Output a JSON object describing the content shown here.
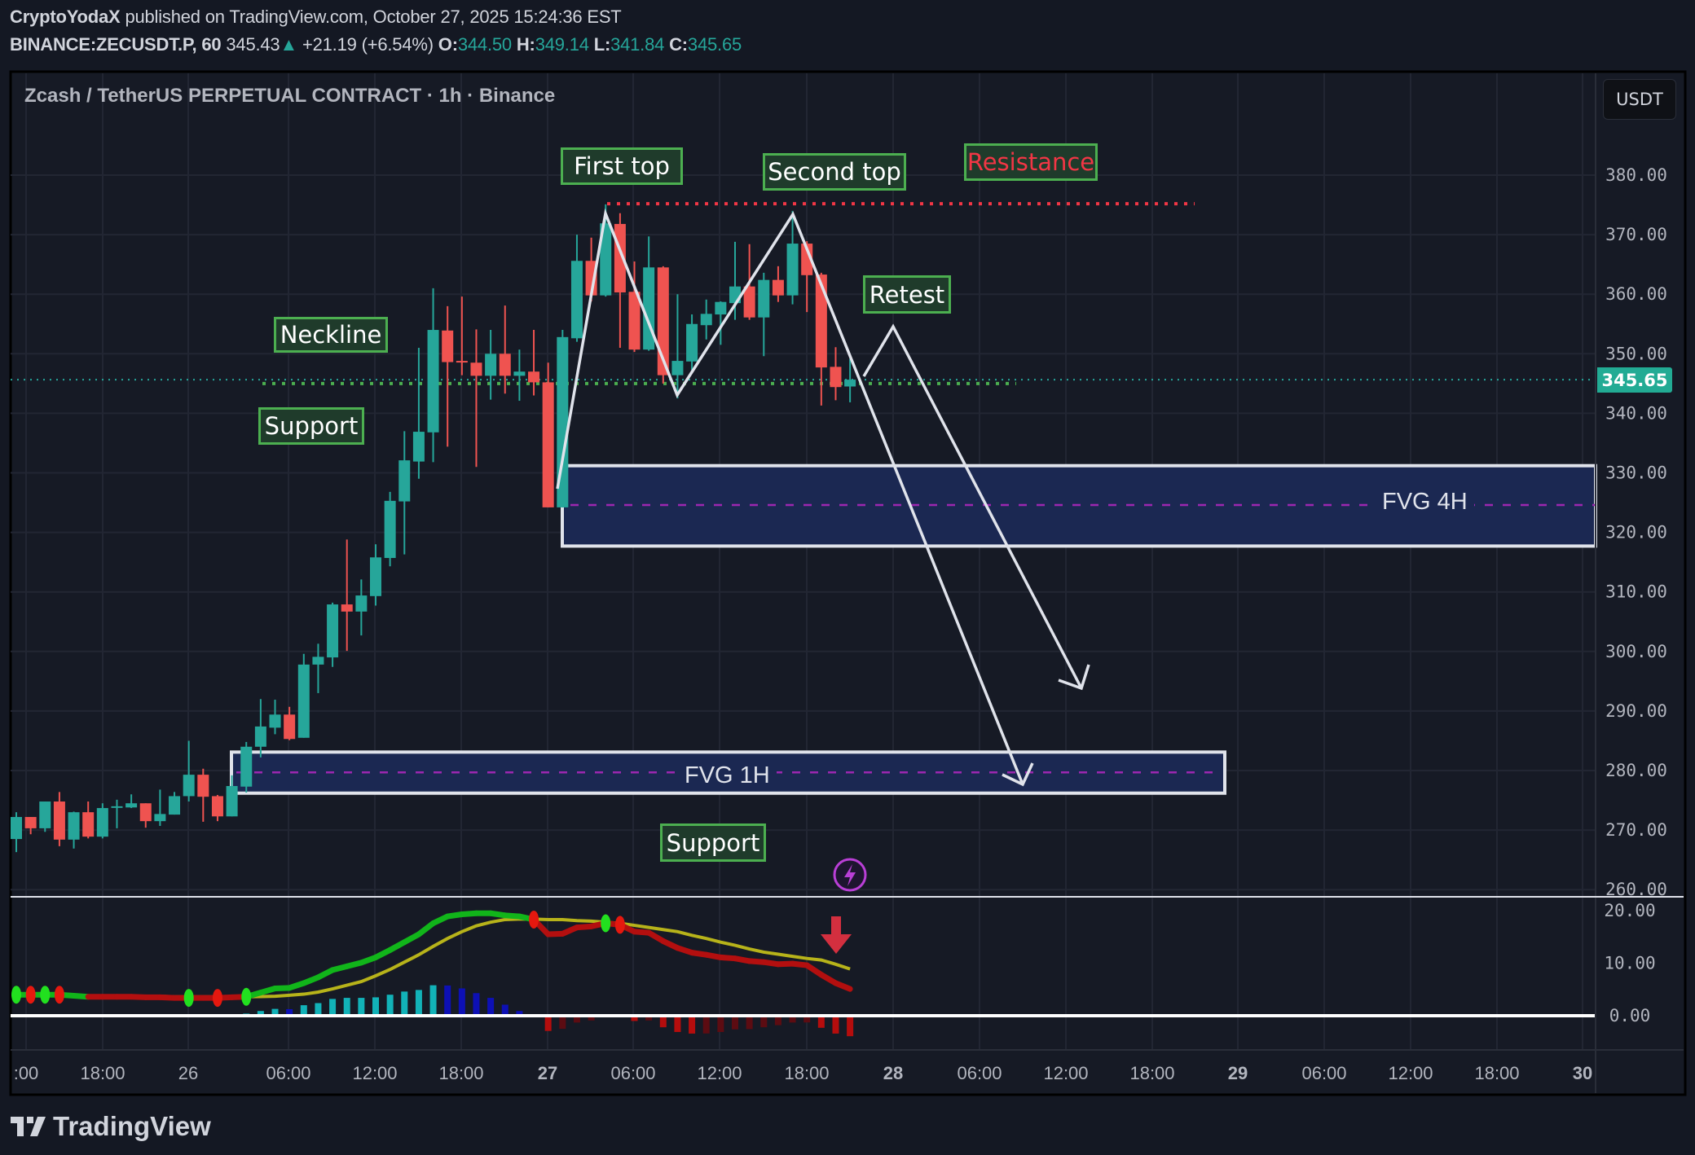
{
  "header": {
    "author": "CryptoYodaX",
    "published": "published on TradingView.com, October 27, 2025 15:24:36 EST",
    "symbol": "BINANCE:ZECUSDT.P, 60",
    "last": "345.43",
    "change": "+21.19 (+6.54%)",
    "o_label": "O:",
    "o": "344.50",
    "h_label": "H:",
    "h": "349.14",
    "l_label": "L:",
    "l": "341.84",
    "c_label": "C:",
    "c": "345.65"
  },
  "chart_title": "Zcash / TetherUS PERPETUAL CONTRACT · 1h · Binance",
  "currency_button": "USDT",
  "current_price_tag": "345.65",
  "annotations": {
    "first_top": "First top",
    "second_top": "Second top",
    "resistance": "Resistance",
    "retest": "Retest",
    "neckline": "Neckline",
    "support_upper": "Support",
    "support_lower": "Support",
    "fvg_4h": "FVG 4H",
    "fvg_1h": "FVG 1H"
  },
  "brand": "TradingView",
  "colors": {
    "up": "#26a69a",
    "down": "#ef5350",
    "background": "#161a25",
    "grid": "#222633",
    "macd_up": "#11b51a",
    "macd_down": "#b30f0f",
    "signal": "#b7b31a",
    "hist_up_rising": "#12b2b8",
    "hist_up_falling": "#0d10b5",
    "hist_down_falling": "#b50d0d",
    "hist_down_rising": "#5c0c12",
    "annotation_border": "#4caf50",
    "resistance": "#f23645",
    "fvg_fill": "#1b2852"
  },
  "chart_data": [
    {
      "type": "candlestick",
      "timeframe": "1h",
      "ylim": [
        258,
        387
      ],
      "price_ticks": [
        "380.00",
        "370.00",
        "360.00",
        "350.00",
        "340.00",
        "330.00",
        "320.00",
        "310.00",
        "300.00",
        "290.00",
        "280.00",
        "270.00",
        "260.00"
      ],
      "time_ticks": [
        ":00",
        "18:00",
        "26",
        "06:00",
        "12:00",
        "18:00",
        "27",
        "06:00",
        "12:00",
        "18:00",
        "28",
        "06:00",
        "12:00",
        "18:00",
        "29",
        "06:00",
        "12:00",
        "18:00",
        "30"
      ],
      "candles_ohlc": [
        [
          268.5,
          273.0,
          266.3,
          272.2
        ],
        [
          272.2,
          272.2,
          269.3,
          270.3
        ],
        [
          270.3,
          274.8,
          269.7,
          274.8
        ],
        [
          274.8,
          276.4,
          267.3,
          268.4
        ],
        [
          268.4,
          273.1,
          266.9,
          273.0
        ],
        [
          273.0,
          274.8,
          268.6,
          268.9
        ],
        [
          268.9,
          274.5,
          268.6,
          273.7
        ],
        [
          273.9,
          275.1,
          270.3,
          274.0
        ],
        [
          273.8,
          276.0,
          273.7,
          274.5
        ],
        [
          274.5,
          274.5,
          270.4,
          271.5
        ],
        [
          271.5,
          276.8,
          270.7,
          272.7
        ],
        [
          272.6,
          276.4,
          272.6,
          275.7
        ],
        [
          275.7,
          285.0,
          274.8,
          279.3
        ],
        [
          279.3,
          280.3,
          271.4,
          275.6
        ],
        [
          275.7,
          275.9,
          271.5,
          272.3
        ],
        [
          272.3,
          279.2,
          272.3,
          277.4
        ],
        [
          277.3,
          284.8,
          276.3,
          284.0
        ],
        [
          284.0,
          292.0,
          282.2,
          287.4
        ],
        [
          287.2,
          291.9,
          286.1,
          289.4
        ],
        [
          289.4,
          290.7,
          285.1,
          285.3
        ],
        [
          285.5,
          299.6,
          285.5,
          297.8
        ],
        [
          297.8,
          301.3,
          293.0,
          299.1
        ],
        [
          299.0,
          308.2,
          297.4,
          307.9
        ],
        [
          307.9,
          318.8,
          300.1,
          306.7
        ],
        [
          306.7,
          312.1,
          302.7,
          309.4
        ],
        [
          309.3,
          318.0,
          307.7,
          315.8
        ],
        [
          315.7,
          326.8,
          314.3,
          325.3
        ],
        [
          325.2,
          337.0,
          316.3,
          332.1
        ],
        [
          331.9,
          351.0,
          329.0,
          336.9
        ],
        [
          336.8,
          361.0,
          331.8,
          354.0
        ],
        [
          353.9,
          358.0,
          334.4,
          348.6
        ],
        [
          348.8,
          359.6,
          346.4,
          348.7
        ],
        [
          348.5,
          354.1,
          331.0,
          346.3
        ],
        [
          346.3,
          354.0,
          342.3,
          350.0
        ],
        [
          350.0,
          358.1,
          343.3,
          346.3
        ],
        [
          346.3,
          350.7,
          342.1,
          347.0
        ],
        [
          347.0,
          354.0,
          343.0,
          345.2
        ],
        [
          345.2,
          348.5,
          324.2,
          324.2
        ],
        [
          324.2,
          354.0,
          324.2,
          352.8
        ],
        [
          352.6,
          370.0,
          352.0,
          365.6
        ],
        [
          365.6,
          369.5,
          358.8,
          359.8
        ],
        [
          359.8,
          375.1,
          359.6,
          371.9
        ],
        [
          371.8,
          373.6,
          351.0,
          360.3
        ],
        [
          360.4,
          365.5,
          350.3,
          350.7
        ],
        [
          350.7,
          369.7,
          350.5,
          364.5
        ],
        [
          364.5,
          364.7,
          345.0,
          346.4
        ],
        [
          346.4,
          360.0,
          342.5,
          348.8
        ],
        [
          348.7,
          356.6,
          347.2,
          355.0
        ],
        [
          354.8,
          359.1,
          352.4,
          356.7
        ],
        [
          356.6,
          358.8,
          351.5,
          358.7
        ],
        [
          358.5,
          368.8,
          355.7,
          361.3
        ],
        [
          361.3,
          368.4,
          355.7,
          356.1
        ],
        [
          356.1,
          363.6,
          349.6,
          362.4
        ],
        [
          362.4,
          364.7,
          358.7,
          359.8
        ],
        [
          359.8,
          374.0,
          358.3,
          368.5
        ],
        [
          368.5,
          368.9,
          357.0,
          363.2
        ],
        [
          363.3,
          363.6,
          341.3,
          347.7
        ],
        [
          347.8,
          351.1,
          342.2,
          344.4
        ],
        [
          344.5,
          349.14,
          341.84,
          345.65
        ]
      ],
      "current_price": 345.65,
      "resistance_level": 375.2,
      "neckline_level": 345.0,
      "fvg_4h": {
        "top": 331.2,
        "bottom": 317.7,
        "mid": 324.6
      },
      "fvg_1h": {
        "top": 283.1,
        "bottom": 276.2,
        "mid": 279.7
      }
    },
    {
      "type": "line+histogram",
      "ylim": [
        -5,
        23
      ],
      "y_ticks": [
        "20.00",
        "10.00",
        "0.00"
      ],
      "macd": [
        4.0,
        4.0,
        4.0,
        4.0,
        3.8,
        3.6,
        3.6,
        3.6,
        3.6,
        3.5,
        3.5,
        3.4,
        3.4,
        3.4,
        3.4,
        3.5,
        3.6,
        4.4,
        5.2,
        5.3,
        6.2,
        7.3,
        8.7,
        9.4,
        10.1,
        11.1,
        12.5,
        14.0,
        15.5,
        17.6,
        18.9,
        19.3,
        19.5,
        19.5,
        19.1,
        18.9,
        18.3,
        15.5,
        15.6,
        16.8,
        17.0,
        17.6,
        17.3,
        16.0,
        15.8,
        14.2,
        12.9,
        12.0,
        11.6,
        11.1,
        10.9,
        10.4,
        10.2,
        9.8,
        9.9,
        9.6,
        7.8,
        6.2,
        5.1
      ],
      "signal": [
        3.9,
        3.9,
        3.9,
        3.9,
        3.8,
        3.8,
        3.8,
        3.7,
        3.7,
        3.7,
        3.7,
        3.6,
        3.6,
        3.6,
        3.6,
        3.6,
        3.6,
        3.65,
        3.7,
        3.9,
        4.1,
        4.5,
        5.1,
        5.8,
        6.5,
        7.6,
        8.8,
        10.2,
        11.6,
        13.2,
        14.7,
        16.0,
        17.1,
        17.8,
        18.3,
        18.4,
        18.4,
        18.3,
        18.3,
        18.1,
        18.0,
        17.8,
        17.6,
        17.2,
        16.8,
        16.4,
        16.0,
        15.3,
        14.7,
        14.0,
        13.4,
        12.7,
        12.1,
        11.7,
        11.3,
        10.9,
        10.6,
        9.8,
        8.9
      ],
      "histogram": [
        0,
        0,
        0,
        0,
        0,
        -0.2,
        0,
        0,
        0,
        -0.2,
        -0.2,
        0,
        0,
        0,
        0,
        0,
        0.4,
        0.9,
        1.3,
        1.25,
        2.0,
        2.4,
        3.2,
        3.4,
        3.4,
        3.5,
        4.0,
        4.6,
        4.9,
        5.8,
        5.75,
        5.2,
        4.3,
        3.4,
        2.1,
        0.9,
        0.3,
        -2.9,
        -2.5,
        -1.3,
        -0.9,
        0,
        0,
        -1.0,
        -0.9,
        -2.2,
        -3.1,
        -3.4,
        -3.38,
        -3.1,
        -2.6,
        -2.55,
        -2.2,
        -1.8,
        -1.3,
        -1.28,
        -2.3,
        -3.4,
        -3.9
      ],
      "cross_markers": [
        [
          0,
          "up"
        ],
        [
          1,
          "down"
        ],
        [
          2,
          "up"
        ],
        [
          3,
          "down"
        ],
        [
          12,
          "up"
        ],
        [
          14,
          "down"
        ],
        [
          16,
          "up"
        ],
        [
          36,
          "down"
        ],
        [
          41,
          "up"
        ],
        [
          42,
          "down"
        ]
      ]
    }
  ]
}
